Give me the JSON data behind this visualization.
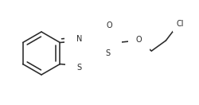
{
  "bg_color": "#ffffff",
  "line_color": "#2a2a2a",
  "line_width": 1.15,
  "font_size": 7.0,
  "figsize": [
    2.5,
    1.32
  ],
  "dpi": 100,
  "xlim": [
    0,
    250
  ],
  "ylim": [
    0,
    132
  ]
}
